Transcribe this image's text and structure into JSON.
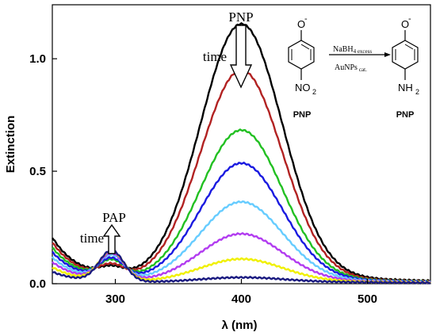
{
  "chart_data": {
    "type": "line",
    "title": "",
    "xlabel": "λ (nm)",
    "ylabel": "Extinction",
    "xlim": [
      250,
      550
    ],
    "ylim": [
      0,
      1.24
    ],
    "x_ticks": [
      300,
      400,
      500
    ],
    "x_tick_labels": [
      "300",
      "400",
      "500"
    ],
    "y_ticks": [
      0.0,
      0.5,
      1.0
    ],
    "y_tick_labels": [
      "0.0",
      "0.5",
      "1.0"
    ],
    "grid": false,
    "legend": "none",
    "peak_nm": 400,
    "series": [
      {
        "color": "#000000",
        "peak": 1.13,
        "base": 0.025,
        "uv_start": 0.26,
        "shoulder": 0.125
      },
      {
        "color": "#b22222",
        "peak": 0.93,
        "base": 0.02,
        "uv_start": 0.24,
        "shoulder": 0.125
      },
      {
        "color": "#22c022",
        "peak": 0.665,
        "base": 0.018,
        "uv_start": 0.22,
        "shoulder": 0.13
      },
      {
        "color": "#1a1ae0",
        "peak": 0.52,
        "base": 0.016,
        "uv_start": 0.2,
        "shoulder": 0.13
      },
      {
        "color": "#66ccff",
        "peak": 0.35,
        "base": 0.014,
        "uv_start": 0.18,
        "shoulder": 0.135
      },
      {
        "color": "#b23cf0",
        "peak": 0.21,
        "base": 0.012,
        "uv_start": 0.16,
        "shoulder": 0.135
      },
      {
        "color": "#f0f000",
        "peak": 0.1,
        "base": 0.01,
        "uv_start": 0.14,
        "shoulder": 0.14
      },
      {
        "color": "#1a1a80",
        "peak": 0.02,
        "base": 0.008,
        "uv_start": 0.12,
        "shoulder": 0.14
      }
    ],
    "annotations": {
      "pnp_top": "PNP",
      "time_top": "time",
      "pap": "PAP",
      "time_bottom": "time"
    }
  },
  "scheme": {
    "reactant_label": "PNP",
    "product_label": "PNP",
    "reactant_group": "NO",
    "reactant_group_sub": "2",
    "product_group": "NH",
    "product_group_sub": "2",
    "oxide": "O",
    "oxide_charge": "-",
    "reagent_top": "NaBH",
    "reagent_top_sub": "4 excess",
    "reagent_bottom": "AuNPs",
    "reagent_bottom_sub": "cat."
  }
}
